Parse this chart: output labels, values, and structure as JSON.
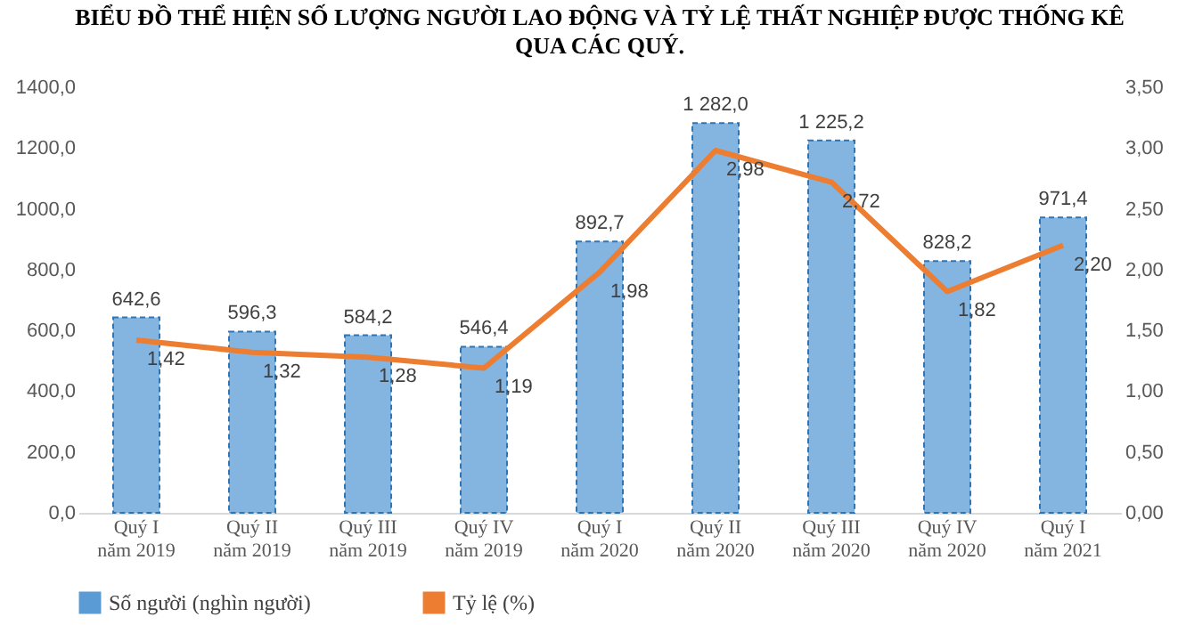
{
  "chart_data": {
    "type": "bar",
    "title": "BIỂU ĐỒ THỂ HIỆN SỐ LƯỢNG NGƯỜI LAO ĐỘNG VÀ TỶ LỆ THẤT NGHIỆP ĐƯỢC THỐNG KÊ QUA CÁC QUÝ.",
    "categories": [
      "Quý I\nnăm 2019",
      "Quý II\nnăm 2019",
      "Quý III\nnăm 2019",
      "Quý IV\nnăm 2019",
      "Quý I\nnăm 2020",
      "Quý II\nnăm 2020",
      "Quý III\nnăm 2020",
      "Quý IV\nnăm 2020",
      "Quý I\nnăm 2021"
    ],
    "series": [
      {
        "name": "Số người (nghìn người)",
        "color": "#5b9bd5",
        "values": [
          642.6,
          596.3,
          584.2,
          546.4,
          892.7,
          1282.0,
          1225.2,
          828.2,
          971.4
        ],
        "value_labels": [
          "642,6",
          "596,3",
          "584,2",
          "546,4",
          "892,7",
          "1 282,0",
          "1 225,2",
          "828,2",
          "971,4"
        ]
      },
      {
        "name": "Tỷ lệ (%)",
        "type": "line",
        "axis": "y2",
        "color": "#ed7d31",
        "values": [
          1.42,
          1.32,
          1.28,
          1.19,
          1.98,
          2.98,
          2.72,
          1.82,
          2.2
        ],
        "value_labels": [
          "1,42",
          "1,32",
          "1,28",
          "1,19",
          "1,98",
          "2,98",
          "2,72",
          "1,82",
          "2,20"
        ]
      }
    ],
    "ylim": [
      0,
      1400
    ],
    "yticks": [
      {
        "value": 0,
        "label": "0,0"
      },
      {
        "value": 200,
        "label": "200,0"
      },
      {
        "value": 400,
        "label": "400,0"
      },
      {
        "value": 600,
        "label": "600,0"
      },
      {
        "value": 800,
        "label": "800,0"
      },
      {
        "value": 1000,
        "label": "1000,0"
      },
      {
        "value": 1200,
        "label": "1200,0"
      },
      {
        "value": 1400,
        "label": "1400,0"
      }
    ],
    "y2lim": [
      0,
      3.5
    ],
    "y2ticks": [
      {
        "value": 0,
        "label": "0,00"
      },
      {
        "value": 0.5,
        "label": "0,50"
      },
      {
        "value": 1,
        "label": "1,00"
      },
      {
        "value": 1.5,
        "label": "1,50"
      },
      {
        "value": 2,
        "label": "2,00"
      },
      {
        "value": 2.5,
        "label": "2,50"
      },
      {
        "value": 3,
        "label": "3,00"
      },
      {
        "value": 3.5,
        "label": "3,50"
      }
    ],
    "grid": false,
    "legend": "bottom",
    "marker": "none",
    "line_style": "solid"
  }
}
